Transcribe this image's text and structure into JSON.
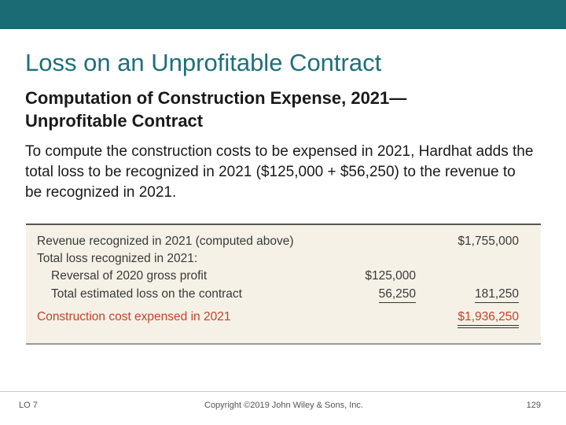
{
  "header": {
    "title": "Loss on an Unprofitable Contract",
    "subtitle": "Computation of Construction Expense, 2021— Unprofitable Contract"
  },
  "paragraph": "To compute the construction costs to be expensed in 2021, Hardhat adds the total loss to be recognized in 2021 ($125,000 + $56,250) to the revenue to be recognized in 2021.",
  "table": {
    "rows": [
      {
        "label": "Revenue recognized in 2021 (computed above)",
        "total": "$1,755,000"
      },
      {
        "label": "Total loss recognized in 2021:"
      },
      {
        "label": "Reversal of 2020 gross profit",
        "amount": "$125,000"
      },
      {
        "label": "Total estimated loss on the contract",
        "amount": "56,250",
        "total": "181,250"
      },
      {
        "label": "Construction cost expensed in 2021",
        "total": "$1,936,250"
      }
    ]
  },
  "footer": {
    "lo": "LO 7",
    "copyright": "Copyright ©2019 John Wiley & Sons, Inc.",
    "page": "129"
  }
}
